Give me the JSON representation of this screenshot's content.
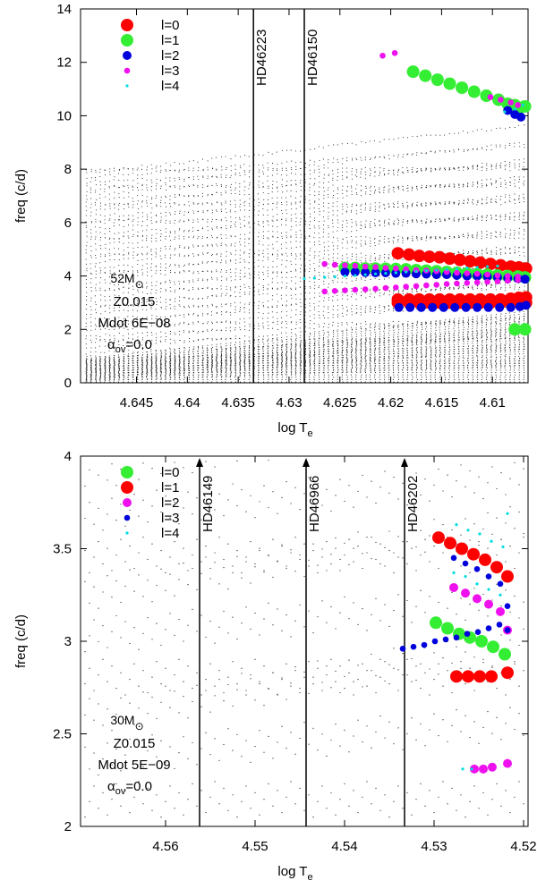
{
  "chart_data": [
    {
      "type": "scatter",
      "xlabel": "log T",
      "xlabel_sub": "e",
      "ylabel": "freq (c/d)",
      "xlim": [
        4.6505,
        4.6065
      ],
      "ylim": [
        0,
        14
      ],
      "xticks": [
        4.645,
        4.64,
        4.635,
        4.63,
        4.625,
        4.62,
        4.615,
        4.61
      ],
      "xtick_labels": [
        "4.645",
        "4.64",
        "4.635",
        "4.63",
        "4.625",
        "4.62",
        "4.615",
        "4.61"
      ],
      "yticks": [
        0,
        2,
        4,
        6,
        8,
        10,
        12,
        14
      ],
      "ytick_labels": [
        "0",
        "2",
        "4",
        "6",
        "8",
        "10",
        "12",
        "14"
      ],
      "legend": [
        {
          "label": "l=0",
          "color": "#ff0000",
          "size": "large"
        },
        {
          "label": "l=1",
          "color": "#33ee33",
          "size": "large"
        },
        {
          "label": "l=2",
          "color": "#0000dd",
          "size": "medium"
        },
        {
          "label": "l=3",
          "color": "#ee11ee",
          "size": "small"
        },
        {
          "label": "l=4",
          "color": "#00dddd",
          "size": "tiny"
        }
      ],
      "stars": [
        {
          "name": "HD46223",
          "logTe": 4.6335,
          "arrow": false
        },
        {
          "name": "HD46150",
          "logTe": 4.6285,
          "arrow": false
        }
      ],
      "model": {
        "mass": "52M",
        "mass_symbol": "⊙",
        "z": "Z0.015",
        "mdot": "Mdot 6E−08",
        "alpha": "α",
        "alpha_sub": "ov",
        "alpha_val": "=0.0"
      },
      "series": [
        {
          "name": "l=0",
          "x": [
            4.6193,
            4.6182,
            4.6172,
            4.6162,
            4.6152,
            4.6142,
            4.6132,
            4.6122,
            4.6112,
            4.6102,
            4.6092,
            4.6082,
            4.6074,
            4.6067
          ],
          "y": [
            4.85,
            4.8,
            4.75,
            4.72,
            4.7,
            4.65,
            4.6,
            4.55,
            4.5,
            4.45,
            4.4,
            4.35,
            4.32,
            4.28
          ]
        },
        {
          "name": "l=0",
          "x": [
            4.6193,
            4.6182,
            4.6172,
            4.6162,
            4.6152,
            4.6142,
            4.6132,
            4.6122,
            4.6112,
            4.6102,
            4.6092,
            4.6082,
            4.6074,
            4.6067
          ],
          "y": [
            3.12,
            3.12,
            3.12,
            3.12,
            3.12,
            3.12,
            3.12,
            3.12,
            3.12,
            3.12,
            3.12,
            3.15,
            3.18,
            3.2
          ]
        },
        {
          "name": "l=0",
          "x": [
            4.6193,
            4.6182,
            4.6172,
            4.6162,
            4.6152,
            4.6142,
            4.6132,
            4.6122,
            4.6112,
            4.6102,
            4.6092,
            4.6082,
            4.6074,
            4.6067
          ],
          "y": [
            3.0,
            3.0,
            3.0,
            3.0,
            3.0,
            3.0,
            3.0,
            3.0,
            3.0,
            3.0,
            3.0,
            3.0,
            3.0,
            3.0
          ]
        },
        {
          "name": "l=1",
          "x": [
            4.6178,
            4.6166,
            4.6154,
            4.6142,
            4.613,
            4.6118,
            4.6106,
            4.6094,
            4.6085,
            4.6078,
            4.6073,
            4.6068
          ],
          "y": [
            11.65,
            11.5,
            11.35,
            11.2,
            11.05,
            10.9,
            10.75,
            10.6,
            10.45,
            10.4,
            10.3,
            10.35
          ]
        },
        {
          "name": "l=1",
          "x": [
            4.6245,
            4.6235,
            4.6225,
            4.6215,
            4.6205,
            4.6195,
            4.6185,
            4.6175,
            4.6165,
            4.6155,
            4.6145,
            4.6135,
            4.6125,
            4.6115,
            4.6105,
            4.6095,
            4.6085,
            4.6075,
            4.6068
          ],
          "y": [
            4.3,
            4.3,
            4.28,
            4.28,
            4.27,
            4.26,
            4.25,
            4.22,
            4.2,
            4.18,
            4.15,
            4.12,
            4.1,
            4.07,
            4.05,
            4.02,
            4.0,
            3.98,
            3.95
          ]
        },
        {
          "name": "l=1",
          "x": [
            4.6078,
            4.6068
          ],
          "y": [
            2.0,
            2.0
          ]
        },
        {
          "name": "l=2",
          "x": [
            4.6245,
            4.6235,
            4.6225,
            4.6215,
            4.6205,
            4.6195,
            4.6185,
            4.6175,
            4.6165,
            4.6155,
            4.6145,
            4.6135,
            4.6125,
            4.6115,
            4.6105,
            4.6095,
            4.6085,
            4.6075,
            4.6068
          ],
          "y": [
            4.15,
            4.15,
            4.13,
            4.12,
            4.12,
            4.1,
            4.1,
            4.08,
            4.07,
            4.05,
            4.05,
            4.02,
            4.0,
            4.0,
            3.98,
            3.95,
            3.92,
            3.9,
            3.88
          ]
        },
        {
          "name": "l=2",
          "x": [
            4.6192,
            4.6181,
            4.617,
            4.6159,
            4.6148,
            4.6137,
            4.6126,
            4.6115,
            4.6104,
            4.6093,
            4.6082,
            4.6073,
            4.6067
          ],
          "y": [
            2.82,
            2.82,
            2.82,
            2.82,
            2.82,
            2.82,
            2.82,
            2.82,
            2.82,
            2.82,
            2.82,
            2.85,
            2.9
          ]
        },
        {
          "name": "l=2",
          "x": [
            4.6085,
            4.6078,
            4.6072
          ],
          "y": [
            10.2,
            10.05,
            9.95
          ]
        },
        {
          "name": "l=3",
          "x": [
            4.6208,
            4.6196
          ],
          "y": [
            12.25,
            12.35
          ]
        },
        {
          "name": "l=3",
          "x": [
            4.6265,
            4.6255,
            4.6245,
            4.6235,
            4.6225,
            4.6215,
            4.6205,
            4.6195,
            4.6185,
            4.6175,
            4.6165,
            4.6155,
            4.6145,
            4.6135,
            4.6125,
            4.6115,
            4.6105,
            4.6095,
            4.6085,
            4.6075
          ],
          "y": [
            3.42,
            3.44,
            3.46,
            3.48,
            3.5,
            3.52,
            3.55,
            3.57,
            3.6,
            3.62,
            3.65,
            3.67,
            3.7,
            3.72,
            3.74,
            3.76,
            3.78,
            3.8,
            3.82,
            3.85
          ]
        },
        {
          "name": "l=3",
          "x": [
            4.6265,
            4.6255,
            4.6245,
            4.6235,
            4.6225,
            4.6215,
            4.6205,
            4.6195,
            4.6185,
            4.6175,
            4.6165,
            4.6155,
            4.6145,
            4.6135,
            4.6125,
            4.6115,
            4.6105,
            4.6095,
            4.6085,
            4.6075
          ],
          "y": [
            4.45,
            4.42,
            4.4,
            4.38,
            4.35,
            4.33,
            4.3,
            4.28,
            4.25,
            4.22,
            4.2,
            4.18,
            4.15,
            4.12,
            4.1,
            4.08,
            4.05,
            4.02,
            4.0,
            3.98
          ]
        },
        {
          "name": "l=3",
          "x": [
            4.6102,
            4.6092,
            4.6082,
            4.6075
          ],
          "y": [
            10.7,
            10.6,
            10.5,
            10.4
          ]
        },
        {
          "name": "l=4",
          "x": [
            4.6285,
            4.6275,
            4.6265,
            4.6255,
            4.6245,
            4.6235,
            4.6225,
            4.6215,
            4.6205,
            4.6195,
            4.6185,
            4.6175,
            4.6165,
            4.6155,
            4.6145,
            4.6135,
            4.6125,
            4.6115,
            4.6105,
            4.6095
          ],
          "y": [
            3.9,
            3.92,
            3.95,
            3.97,
            4.0,
            4.02,
            4.05,
            4.08,
            4.1,
            4.12,
            4.15,
            4.17,
            4.2,
            4.22,
            4.25,
            4.27,
            4.3,
            4.32,
            4.35,
            4.37
          ]
        },
        {
          "name": "l=4",
          "x": [
            4.6088,
            4.6078,
            4.607
          ],
          "y": [
            10.15,
            10.25,
            10.4
          ]
        }
      ]
    },
    {
      "type": "scatter",
      "xlabel": "log T",
      "xlabel_sub": "e",
      "ylabel": "freq (c/d)",
      "xlim": [
        4.5695,
        4.5195
      ],
      "ylim": [
        2,
        4
      ],
      "xticks": [
        4.56,
        4.55,
        4.54,
        4.53,
        4.52
      ],
      "xtick_labels": [
        "4.56",
        "4.55",
        "4.54",
        "4.53",
        "4.52"
      ],
      "yticks": [
        2,
        2.5,
        3,
        3.5,
        4
      ],
      "ytick_labels": [
        "2",
        "2.5",
        "3",
        "3.5",
        "4"
      ],
      "legend": [
        {
          "label": "l=0",
          "color": "#33ee33",
          "size": "large"
        },
        {
          "label": "l=1",
          "color": "#ff0000",
          "size": "large"
        },
        {
          "label": "l=2",
          "color": "#ee11ee",
          "size": "medium"
        },
        {
          "label": "l=3",
          "color": "#0000dd",
          "size": "small"
        },
        {
          "label": "l=4",
          "color": "#00dddd",
          "size": "tiny"
        }
      ],
      "stars": [
        {
          "name": "HD46149",
          "logTe": 4.5562,
          "arrow": true
        },
        {
          "name": "HD46966",
          "logTe": 4.5443,
          "arrow": true
        },
        {
          "name": "HD46202",
          "logTe": 4.5333,
          "arrow": true
        }
      ],
      "model": {
        "mass": "30M",
        "mass_symbol": "⊙",
        "z": "Z0.015",
        "mdot": "Mdot 5E−09",
        "alpha": "α",
        "alpha_sub": "ov",
        "alpha_val": "=0.0"
      },
      "series": [
        {
          "name": "l=0",
          "x": [
            4.5298,
            4.5285,
            4.5272,
            4.526,
            4.5247,
            4.5234,
            4.5221
          ],
          "y": [
            3.1,
            3.07,
            3.04,
            3.02,
            3.0,
            2.97,
            2.93
          ]
        },
        {
          "name": "l=1",
          "x": [
            4.5295,
            4.5282,
            4.5269,
            4.5256,
            4.5243,
            4.523,
            4.5218
          ],
          "y": [
            3.56,
            3.53,
            3.5,
            3.47,
            3.44,
            3.4,
            3.35
          ]
        },
        {
          "name": "l=1",
          "x": [
            4.5275,
            4.5262,
            4.5249,
            4.5236,
            4.5218
          ],
          "y": [
            2.81,
            2.81,
            2.81,
            2.81,
            2.83
          ]
        },
        {
          "name": "l=2",
          "x": [
            4.5278,
            4.5265,
            4.5252,
            4.5239,
            4.5226
          ],
          "y": [
            3.29,
            3.26,
            3.23,
            3.2,
            3.16
          ]
        },
        {
          "name": "l=2",
          "x": [
            4.5255,
            4.5245,
            4.5235,
            4.5218
          ],
          "y": [
            2.31,
            2.31,
            2.32,
            2.34
          ]
        },
        {
          "name": "l=2",
          "x": [
            4.5218
          ],
          "y": [
            3.06
          ]
        },
        {
          "name": "l=3",
          "x": [
            4.5278,
            4.5265,
            4.5252,
            4.5239,
            4.5226
          ],
          "y": [
            3.45,
            3.42,
            3.39,
            3.35,
            3.31
          ]
        },
        {
          "name": "l=3",
          "x": [
            4.5335,
            4.5323,
            4.5311,
            4.5299,
            4.5287,
            4.5275,
            4.5263,
            4.5251,
            4.5239,
            4.5227,
            4.5218
          ],
          "y": [
            2.96,
            2.97,
            2.98,
            3.0,
            3.01,
            3.02,
            3.04,
            3.05,
            3.07,
            3.09,
            3.06
          ]
        },
        {
          "name": "l=3",
          "x": [
            4.5218
          ],
          "y": [
            3.19
          ]
        },
        {
          "name": "l=4",
          "x": [
            4.5275,
            4.5262,
            4.5249,
            4.5236,
            4.5223
          ],
          "y": [
            3.63,
            3.6,
            3.58,
            3.54,
            3.51
          ]
        },
        {
          "name": "l=4",
          "x": [
            4.5278,
            4.5265,
            4.5252,
            4.5239,
            4.5226
          ],
          "y": [
            3.37,
            3.35,
            3.31,
            3.28,
            3.25
          ]
        },
        {
          "name": "l=4",
          "x": [
            4.5218
          ],
          "y": [
            3.69
          ]
        },
        {
          "name": "l=4",
          "x": [
            4.5268,
            4.5258
          ],
          "y": [
            2.31,
            2.31
          ]
        }
      ]
    }
  ]
}
